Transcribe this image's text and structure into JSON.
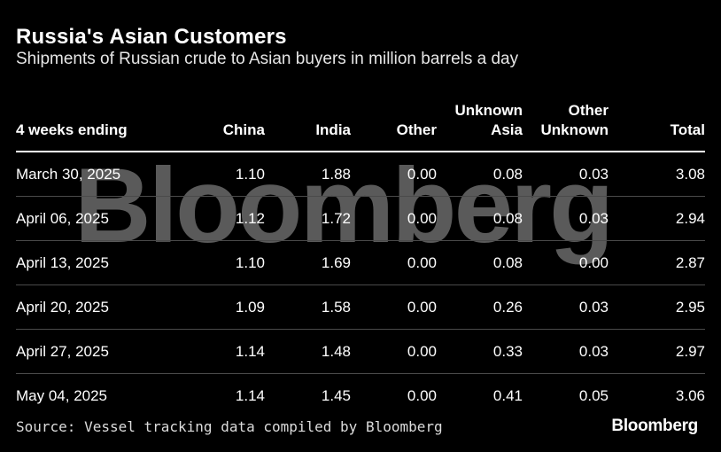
{
  "chart_data": {
    "type": "table",
    "title": "Russia's Asian Customers",
    "subtitle": "Shipments of Russian crude to Asian buyers in million barrels a day",
    "columns": [
      "4 weeks ending",
      "China",
      "India",
      "Other",
      "Unknown Asia",
      "Other Unknown",
      "Total"
    ],
    "rows": [
      [
        "March 30, 2025",
        "1.10",
        "1.88",
        "0.00",
        "0.08",
        "0.03",
        "3.08"
      ],
      [
        "April 06, 2025",
        "1.12",
        "1.72",
        "0.00",
        "0.08",
        "0.03",
        "2.94"
      ],
      [
        "April 13, 2025",
        "1.10",
        "1.69",
        "0.00",
        "0.08",
        "0.00",
        "2.87"
      ],
      [
        "April 20, 2025",
        "1.09",
        "1.58",
        "0.00",
        "0.26",
        "0.03",
        "2.95"
      ],
      [
        "April 27, 2025",
        "1.14",
        "1.48",
        "0.00",
        "0.33",
        "0.03",
        "2.97"
      ],
      [
        "May 04, 2025",
        "1.14",
        "1.45",
        "0.00",
        "0.41",
        "0.05",
        "3.06"
      ]
    ],
    "source": "Source: Vessel tracking data compiled by Bloomberg"
  },
  "watermark": "Bloomberg",
  "logo": "Bloomberg"
}
